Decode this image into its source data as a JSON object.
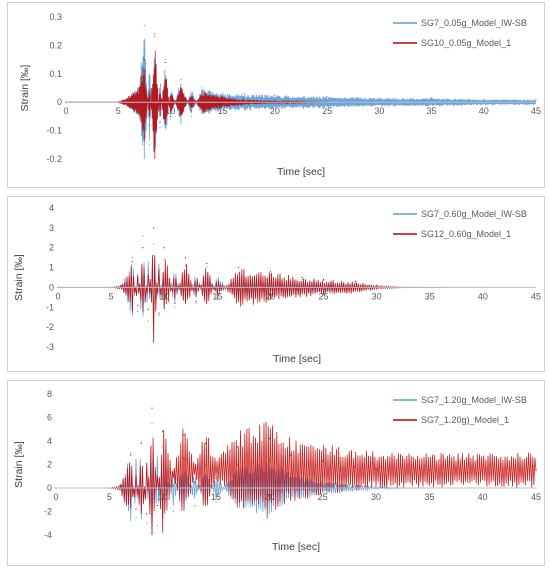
{
  "chart_data": [
    {
      "type": "line",
      "xlabel": "Time [sec]",
      "ylabel": "Strain [‰]",
      "xlim": [
        0,
        45
      ],
      "ylim": [
        -0.2,
        0.3
      ],
      "xticks": [
        0,
        5,
        10,
        15,
        20,
        25,
        30,
        35,
        40,
        45
      ],
      "yticks": [
        -0.2,
        -0.1,
        0,
        0.1,
        0.2,
        0.3
      ],
      "ytick_labels": [
        "-0.2",
        "-0.1",
        "0",
        "0.1",
        "0.2",
        "0.3"
      ],
      "grid": false,
      "legend": "top-right",
      "series": [
        {
          "name": "SG7_0.05g_Model_IW-SB",
          "color": "#5b9bd5",
          "x": [
            0,
            5,
            6,
            7,
            7.5,
            8,
            8.5,
            9,
            9.5,
            10,
            11,
            12,
            13,
            15,
            17,
            20,
            25,
            30,
            35,
            40,
            45
          ],
          "y": [
            0,
            0,
            0.02,
            0.06,
            0.27,
            -0.15,
            0.23,
            -0.09,
            0.15,
            -0.06,
            0.08,
            -0.05,
            0.05,
            0.03,
            0.03,
            0.025,
            0.02,
            0.015,
            0.015,
            0.01,
            0.01
          ]
        },
        {
          "name": "SG10_0.05g_Model_1",
          "color": "#c00000",
          "x": [
            0,
            5,
            6,
            7,
            7.5,
            8,
            8.5,
            9,
            9.5,
            10,
            11,
            12,
            13,
            15,
            17,
            20,
            25
          ],
          "y": [
            0,
            0,
            0.02,
            0.05,
            0.15,
            -0.08,
            0.24,
            -0.07,
            0.14,
            -0.05,
            0.06,
            -0.03,
            0.04,
            0.02,
            0.01,
            0.005,
            0
          ]
        }
      ]
    },
    {
      "type": "line",
      "xlabel": "Time [sec]",
      "ylabel": "Strain [‰]",
      "xlim": [
        0,
        45
      ],
      "ylim": [
        -3,
        4
      ],
      "xticks": [
        0,
        5,
        10,
        15,
        20,
        25,
        30,
        35,
        40,
        45
      ],
      "yticks": [
        -3,
        -2,
        -1,
        0,
        1,
        2,
        3,
        4
      ],
      "ytick_labels": [
        "-3",
        "-2",
        "-1",
        "0",
        "1",
        "2",
        "3",
        "4"
      ],
      "grid": false,
      "legend": "top-right",
      "series": [
        {
          "name": "SG7_0.60g_Model_IW-SB",
          "color": "#5b9bd5",
          "x": [
            0,
            5,
            6,
            7,
            7.5,
            8,
            8.5,
            9,
            9.5,
            10,
            11,
            12,
            13,
            14,
            15,
            17,
            20,
            23,
            25,
            28,
            30,
            35,
            40
          ],
          "y": [
            0,
            0,
            0.1,
            1.5,
            -1.2,
            2.6,
            -1.7,
            2.2,
            -1.4,
            1.4,
            -1.0,
            1.1,
            -0.8,
            1.0,
            -0.6,
            0.7,
            0.6,
            0.4,
            0.35,
            0.2,
            0.05,
            0,
            0
          ]
        },
        {
          "name": "SG12_0.60g_Model_1",
          "color": "#c00000",
          "x": [
            0,
            5,
            6,
            7,
            7.5,
            8,
            8.5,
            9,
            9.5,
            10,
            11,
            12,
            13,
            14,
            15,
            17,
            20,
            23,
            25,
            28,
            30,
            33,
            36
          ],
          "y": [
            0,
            0,
            0.1,
            1.3,
            -0.9,
            2.0,
            -1.1,
            3.0,
            -1.3,
            2.0,
            -0.8,
            1.5,
            -0.7,
            1.2,
            -0.5,
            1.0,
            0.8,
            0.5,
            0.4,
            0.3,
            0.1,
            0,
            0
          ]
        }
      ]
    },
    {
      "type": "line",
      "xlabel": "Time [sec]",
      "ylabel": "Strain [‰]",
      "xlim": [
        0,
        45
      ],
      "ylim": [
        -4,
        8
      ],
      "xticks": [
        0,
        5,
        10,
        15,
        20,
        25,
        30,
        35,
        40,
        45
      ],
      "yticks": [
        -4,
        -2,
        0,
        2,
        4,
        6,
        8
      ],
      "ytick_labels": [
        "-4",
        "-2",
        "0",
        "2",
        "4",
        "6",
        "8"
      ],
      "grid": false,
      "legend": "top-right",
      "series": [
        {
          "name": "SG7_1.20g_Model_IW-SB",
          "color": "#5b9bd5",
          "x": [
            0,
            5,
            6,
            7,
            7.5,
            8,
            8.5,
            9,
            9.5,
            10,
            11,
            12,
            13,
            14,
            15,
            17,
            20,
            22,
            25,
            28,
            30,
            35,
            40,
            45
          ],
          "y": [
            0,
            0,
            0.2,
            3.0,
            -2.5,
            4.0,
            -3.0,
            5.5,
            -3.2,
            3.5,
            -2.0,
            2.5,
            -1.5,
            2.0,
            -1.2,
            2.0,
            2.4,
            1.2,
            0.6,
            0.3,
            0.1,
            0,
            0,
            0
          ]
        },
        {
          "name": "SG7_1.20g)_Model_1",
          "color": "#c00000",
          "x": [
            0,
            5,
            6,
            7,
            7.5,
            8,
            8.5,
            9,
            9.5,
            10,
            11,
            12,
            13,
            14,
            15,
            17,
            20,
            22,
            25,
            28,
            30,
            35,
            40,
            45
          ],
          "y": [
            0,
            0,
            0.2,
            2.8,
            -1.8,
            3.8,
            -2.2,
            6.8,
            -1.5,
            4.8,
            0.2,
            4.5,
            0.5,
            3.8,
            0.8,
            3.5,
            4.2,
            2.8,
            2.3,
            1.8,
            1.6,
            1.5,
            1.5,
            1.5
          ]
        }
      ]
    }
  ]
}
